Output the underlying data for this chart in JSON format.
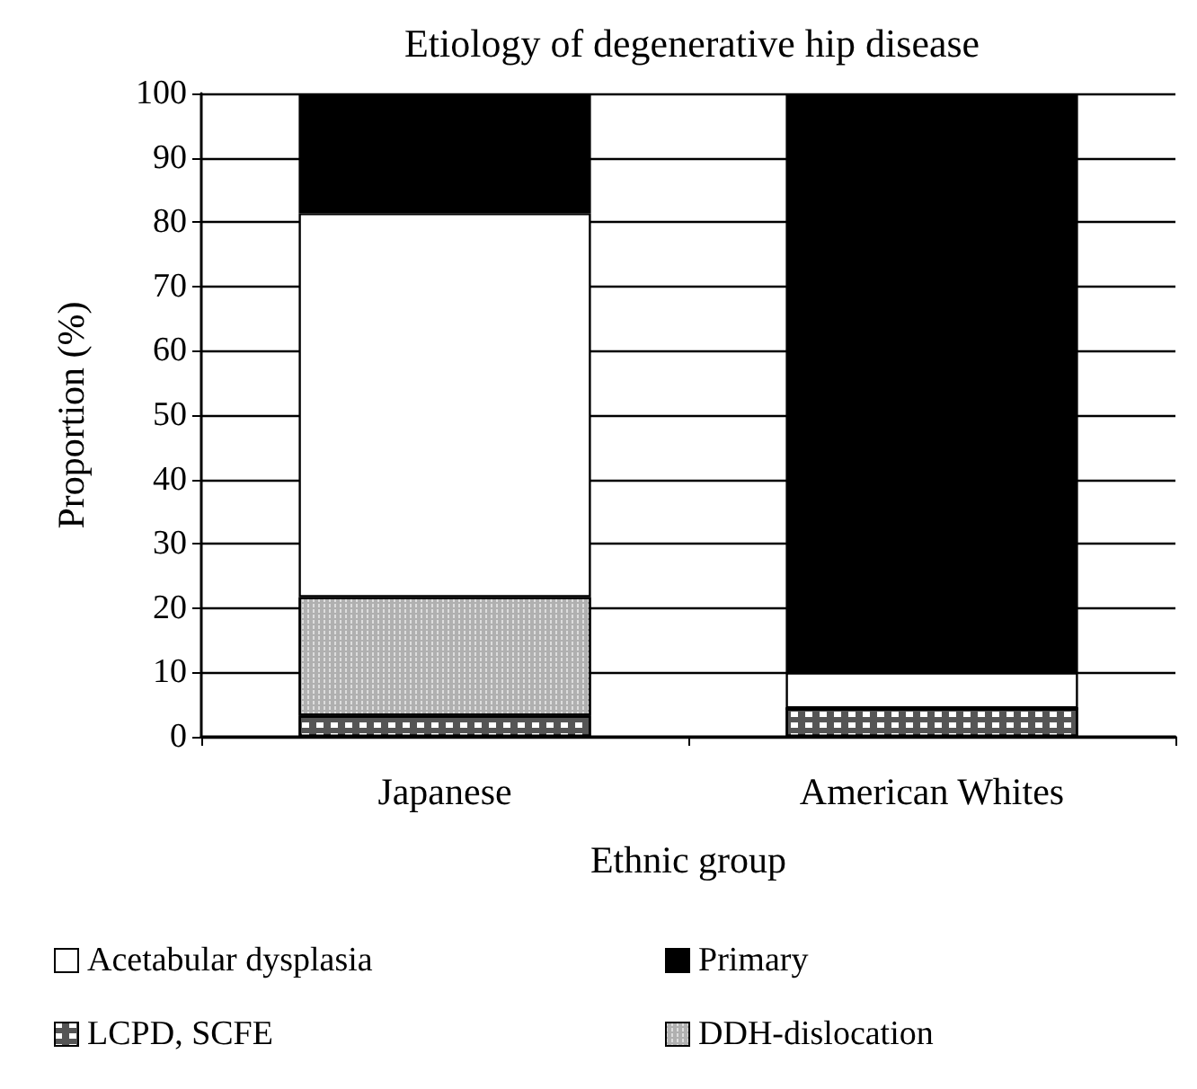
{
  "chart_data": {
    "type": "bar",
    "title": "Etiology of degenerative hip disease",
    "xlabel": "Ethnic group",
    "ylabel": "Proportion (%)",
    "categories": [
      "Japanese",
      "American Whites"
    ],
    "stacked": true,
    "series": [
      {
        "name": "LCPD, SCFE",
        "color": "#555555",
        "values": [
          3.3,
          4.4
        ]
      },
      {
        "name": "DDH-dislocation",
        "color": "#b0b0b0",
        "values": [
          18.4,
          0
        ]
      },
      {
        "name": "Acetabular dysplasia",
        "color": "#ffffff",
        "values": [
          59.7,
          5.6
        ]
      },
      {
        "name": "Primary",
        "color": "#000000",
        "values": [
          18.6,
          90
        ]
      }
    ],
    "ylim": [
      0,
      100
    ],
    "yticks": [
      0,
      10,
      20,
      30,
      40,
      50,
      60,
      70,
      80,
      90,
      100
    ],
    "grid": "y",
    "legend": "bottom"
  }
}
